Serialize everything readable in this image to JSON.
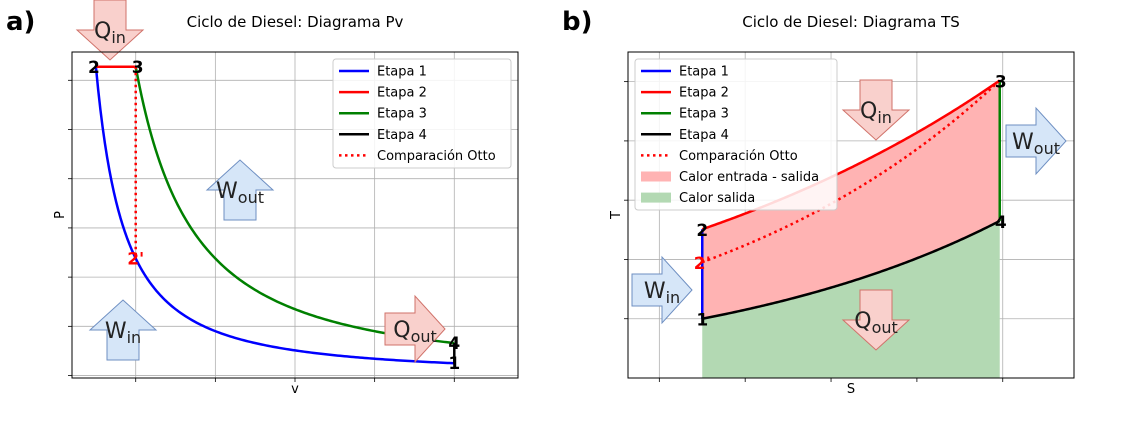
{
  "chart_data": [
    {
      "type": "line",
      "panel_label": "a)",
      "title": "Ciclo de Diesel: Diagrama Pv",
      "xlabel": "v",
      "ylabel": "P",
      "grid": true,
      "legend_position": "top-right",
      "series": [
        {
          "name": "Etapa 1",
          "color": "#0000ff",
          "style": "solid",
          "from": "1",
          "to": "2",
          "curve": "adiabatic"
        },
        {
          "name": "Etapa 2",
          "color": "#ff0000",
          "style": "solid",
          "from": "2",
          "to": "3",
          "curve": "isobaric"
        },
        {
          "name": "Etapa 3",
          "color": "#008000",
          "style": "solid",
          "from": "3",
          "to": "4",
          "curve": "adiabatic"
        },
        {
          "name": "Etapa 4",
          "color": "#000000",
          "style": "solid",
          "from": "4",
          "to": "1",
          "curve": "isochoric"
        },
        {
          "name": "Comparación Otto",
          "color": "#ff0000",
          "style": "dotted",
          "from": "3",
          "to": "2'",
          "curve": "isochoric"
        }
      ],
      "points": [
        {
          "label": "1",
          "v": 10,
          "P": 1
        },
        {
          "label": "2",
          "v": 1,
          "P": 25.1
        },
        {
          "label": "3",
          "v": 2,
          "P": 25.1
        },
        {
          "label": "4",
          "v": 10,
          "P": 2.65
        },
        {
          "label": "2'",
          "v": 2,
          "P": 9.5
        }
      ],
      "point_label_colors": {
        "1": "#000000",
        "2": "#000000",
        "3": "#000000",
        "4": "#000000",
        "2'": "#ff0000"
      },
      "xlim": [
        0.4,
        11.6
      ],
      "ylim": [
        -0.2,
        26.3
      ],
      "annotations": [
        {
          "text": "Q",
          "sub": "in",
          "direction": "down",
          "color": "red"
        },
        {
          "text": "W",
          "sub": "out",
          "direction": "up",
          "color": "blue"
        },
        {
          "text": "W",
          "sub": "in",
          "direction": "up",
          "color": "blue"
        },
        {
          "text": "Q",
          "sub": "out",
          "direction": "right",
          "color": "red"
        }
      ]
    },
    {
      "type": "area",
      "panel_label": "b)",
      "title": "Ciclo de Diesel: Diagrama TS",
      "xlabel": "S",
      "ylabel": "T",
      "grid": true,
      "legend_position": "top-left",
      "series": [
        {
          "name": "Etapa 1",
          "color": "#0000ff",
          "style": "solid",
          "from": "1",
          "to": "2",
          "curve": "isentropic"
        },
        {
          "name": "Etapa 2",
          "color": "#ff0000",
          "style": "solid",
          "from": "2",
          "to": "3",
          "curve": "isobaric"
        },
        {
          "name": "Etapa 3",
          "color": "#008000",
          "style": "solid",
          "from": "3",
          "to": "4",
          "curve": "isentropic"
        },
        {
          "name": "Etapa 4",
          "color": "#000000",
          "style": "solid",
          "from": "4",
          "to": "1",
          "curve": "isochoric"
        },
        {
          "name": "Comparación Otto",
          "color": "#ff0000",
          "style": "dotted",
          "from": "2'",
          "to": "3",
          "curve": "isochoric"
        },
        {
          "name": "Calor entrada - salida",
          "color": "#ffb3b3",
          "style": "fill"
        },
        {
          "name": "Calor salida",
          "color": "#b3d9b3",
          "style": "fill"
        }
      ],
      "points": [
        {
          "label": "1",
          "S": 1.0,
          "T": 1.0
        },
        {
          "label": "2",
          "S": 1.0,
          "T": 2.51
        },
        {
          "label": "3",
          "S": 1.693,
          "T": 5.02
        },
        {
          "label": "4",
          "S": 1.693,
          "T": 2.65
        },
        {
          "label": "2'",
          "S": 1.0,
          "T": 1.955
        }
      ],
      "point_label_colors": {
        "1": "#000000",
        "2": "#000000",
        "3": "#000000",
        "4": "#000000",
        "2'": "#ff0000"
      },
      "xlim": [
        0.827,
        1.866
      ],
      "ylim": [
        0.0,
        5.5
      ],
      "annotations": [
        {
          "text": "Q",
          "sub": "in",
          "direction": "down",
          "color": "red"
        },
        {
          "text": "W",
          "sub": "out",
          "direction": "right",
          "color": "blue"
        },
        {
          "text": "W",
          "sub": "in",
          "direction": "right",
          "color": "blue"
        },
        {
          "text": "Q",
          "sub": "out",
          "direction": "down",
          "color": "red"
        }
      ]
    }
  ]
}
